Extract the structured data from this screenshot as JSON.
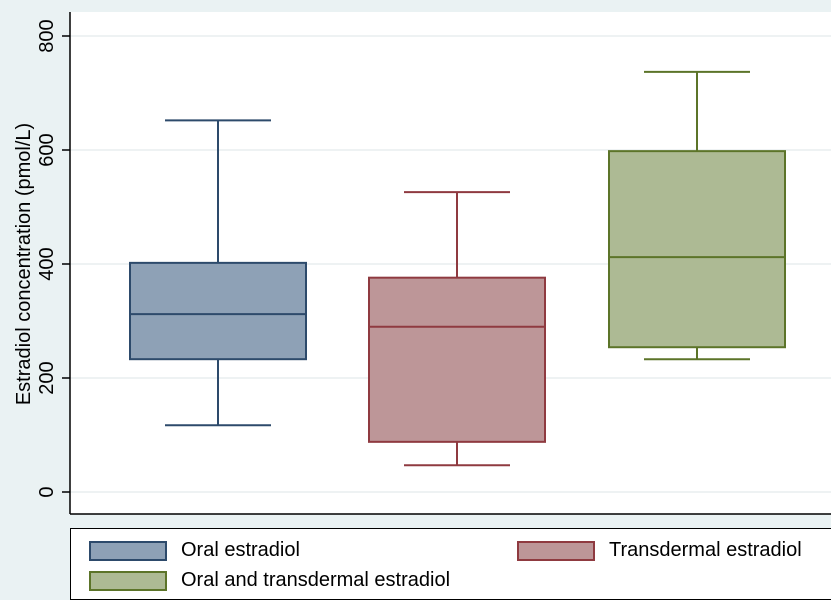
{
  "chart_data": {
    "type": "box",
    "title": "",
    "xlabel": "",
    "ylabel": "Estradiol concentration (pmol/L)",
    "ylim": [
      -40,
      840
    ],
    "yticks": [
      0,
      200,
      400,
      600,
      800
    ],
    "grid": true,
    "legend_position": "bottom",
    "series": [
      {
        "name": "Oral estradiol",
        "whisker_low": 117,
        "q1": 233,
        "median": 312,
        "q3": 402,
        "whisker_high": 652,
        "fill": "#8ea1b6",
        "stroke": "#2d4a6b"
      },
      {
        "name": "Transdermal estradiol",
        "whisker_low": 47,
        "q1": 88,
        "median": 290,
        "q3": 376,
        "whisker_high": 526,
        "fill": "#bd9698",
        "stroke": "#8f3a40"
      },
      {
        "name": "Oral and transdermal estradiol",
        "whisker_low": 233,
        "q1": 254,
        "median": 412,
        "q3": 598,
        "whisker_high": 737,
        "fill": "#adba94",
        "stroke": "#5c7429"
      }
    ]
  }
}
